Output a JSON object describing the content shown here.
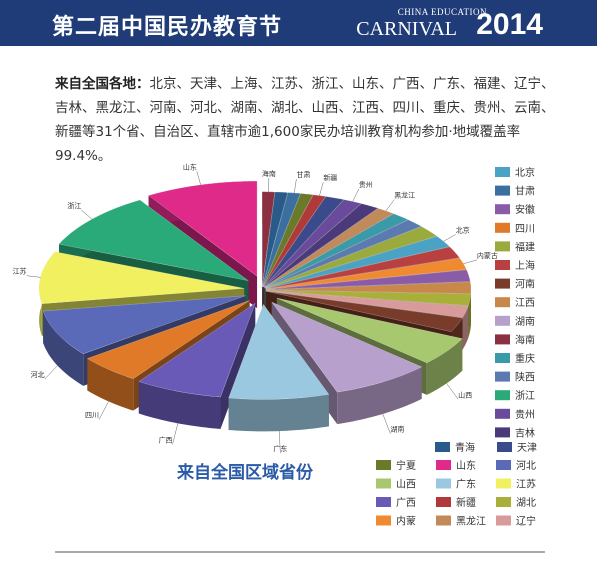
{
  "header": {
    "title": "第二届中国民办教育节",
    "brand_top": "CHINA EDUCATION",
    "brand_name": "CARNIVAL",
    "brand_year": "2014"
  },
  "paragraph": {
    "lead": "来自全国各地：",
    "text": "北京、天津、上海、江苏、浙江、山东、广西、广东、福建、辽宁、吉林、黑龙江、河南、河北、湖南、湖北、山西、江西、四川、重庆、贵州、云南、新疆等31个省、自治区、直辖市逾1,600家民办培训教育机构参加·地域覆盖率99.4%。"
  },
  "chart_data": {
    "type": "pie3d",
    "title": "来自全国区域省份",
    "categories": [
      "海南",
      "青海",
      "甘肃",
      "宁夏",
      "新疆",
      "天津",
      "贵州",
      "吉林",
      "黑龙江",
      "重庆",
      "陕西",
      "福建",
      "北京",
      "上海",
      "内蒙",
      "安徽",
      "江西",
      "湖北",
      "辽宁",
      "河南",
      "山西",
      "湖南",
      "广东",
      "广西",
      "四川",
      "河北",
      "江苏",
      "浙江",
      "山东"
    ],
    "labels": [
      "海南",
      null,
      "甘肃",
      null,
      "新疆",
      null,
      "贵州",
      null,
      "黑龙江",
      null,
      null,
      null,
      "北京",
      null,
      "内蒙古",
      null,
      null,
      null,
      null,
      null,
      "山西",
      "湖南",
      "广东",
      "广西",
      "四川",
      "河北",
      "江苏",
      "浙江",
      "山东"
    ],
    "values": [
      1,
      1,
      1,
      1,
      1,
      1.5,
      1.5,
      1.5,
      1.5,
      1.5,
      1.5,
      2,
      2,
      2,
      2,
      2,
      2,
      2,
      2,
      2.5,
      5,
      8,
      8,
      7,
      5,
      8,
      9,
      10,
      9
    ],
    "colors": [
      "#8a3040",
      "#2a5a8a",
      "#3a6fa0",
      "#6a7a2a",
      "#b03a3a",
      "#3a4a8a",
      "#6a4a9a",
      "#4a3a7a",
      "#c08a5a",
      "#3a9aa8",
      "#5a7ab0",
      "#9aaa3c",
      "#4aa3c4",
      "#b84040",
      "#f08a30",
      "#8a5ca8",
      "#c8884a",
      "#a8b03a",
      "#d89a9a",
      "#7a3c2a",
      "#a8c870",
      "#b8a0cc",
      "#9ac8e0",
      "#6a5ab8",
      "#e07a28",
      "#5a6ab8",
      "#f0f060",
      "#2aaa78",
      "#e02a8a"
    ],
    "legend": [
      "北京",
      "甘肃",
      "安徽",
      "四川",
      "福建",
      "上海",
      "河南",
      "江西",
      "湖南",
      "海南",
      "重庆",
      "陕西",
      "浙江",
      "贵州",
      "吉林",
      "青海",
      "天津",
      "宁夏",
      "山东",
      "河北",
      "山西",
      "广东",
      "江苏",
      "广西",
      "新疆",
      "湖北",
      "内蒙",
      "黑龙江",
      "辽宁"
    ]
  }
}
